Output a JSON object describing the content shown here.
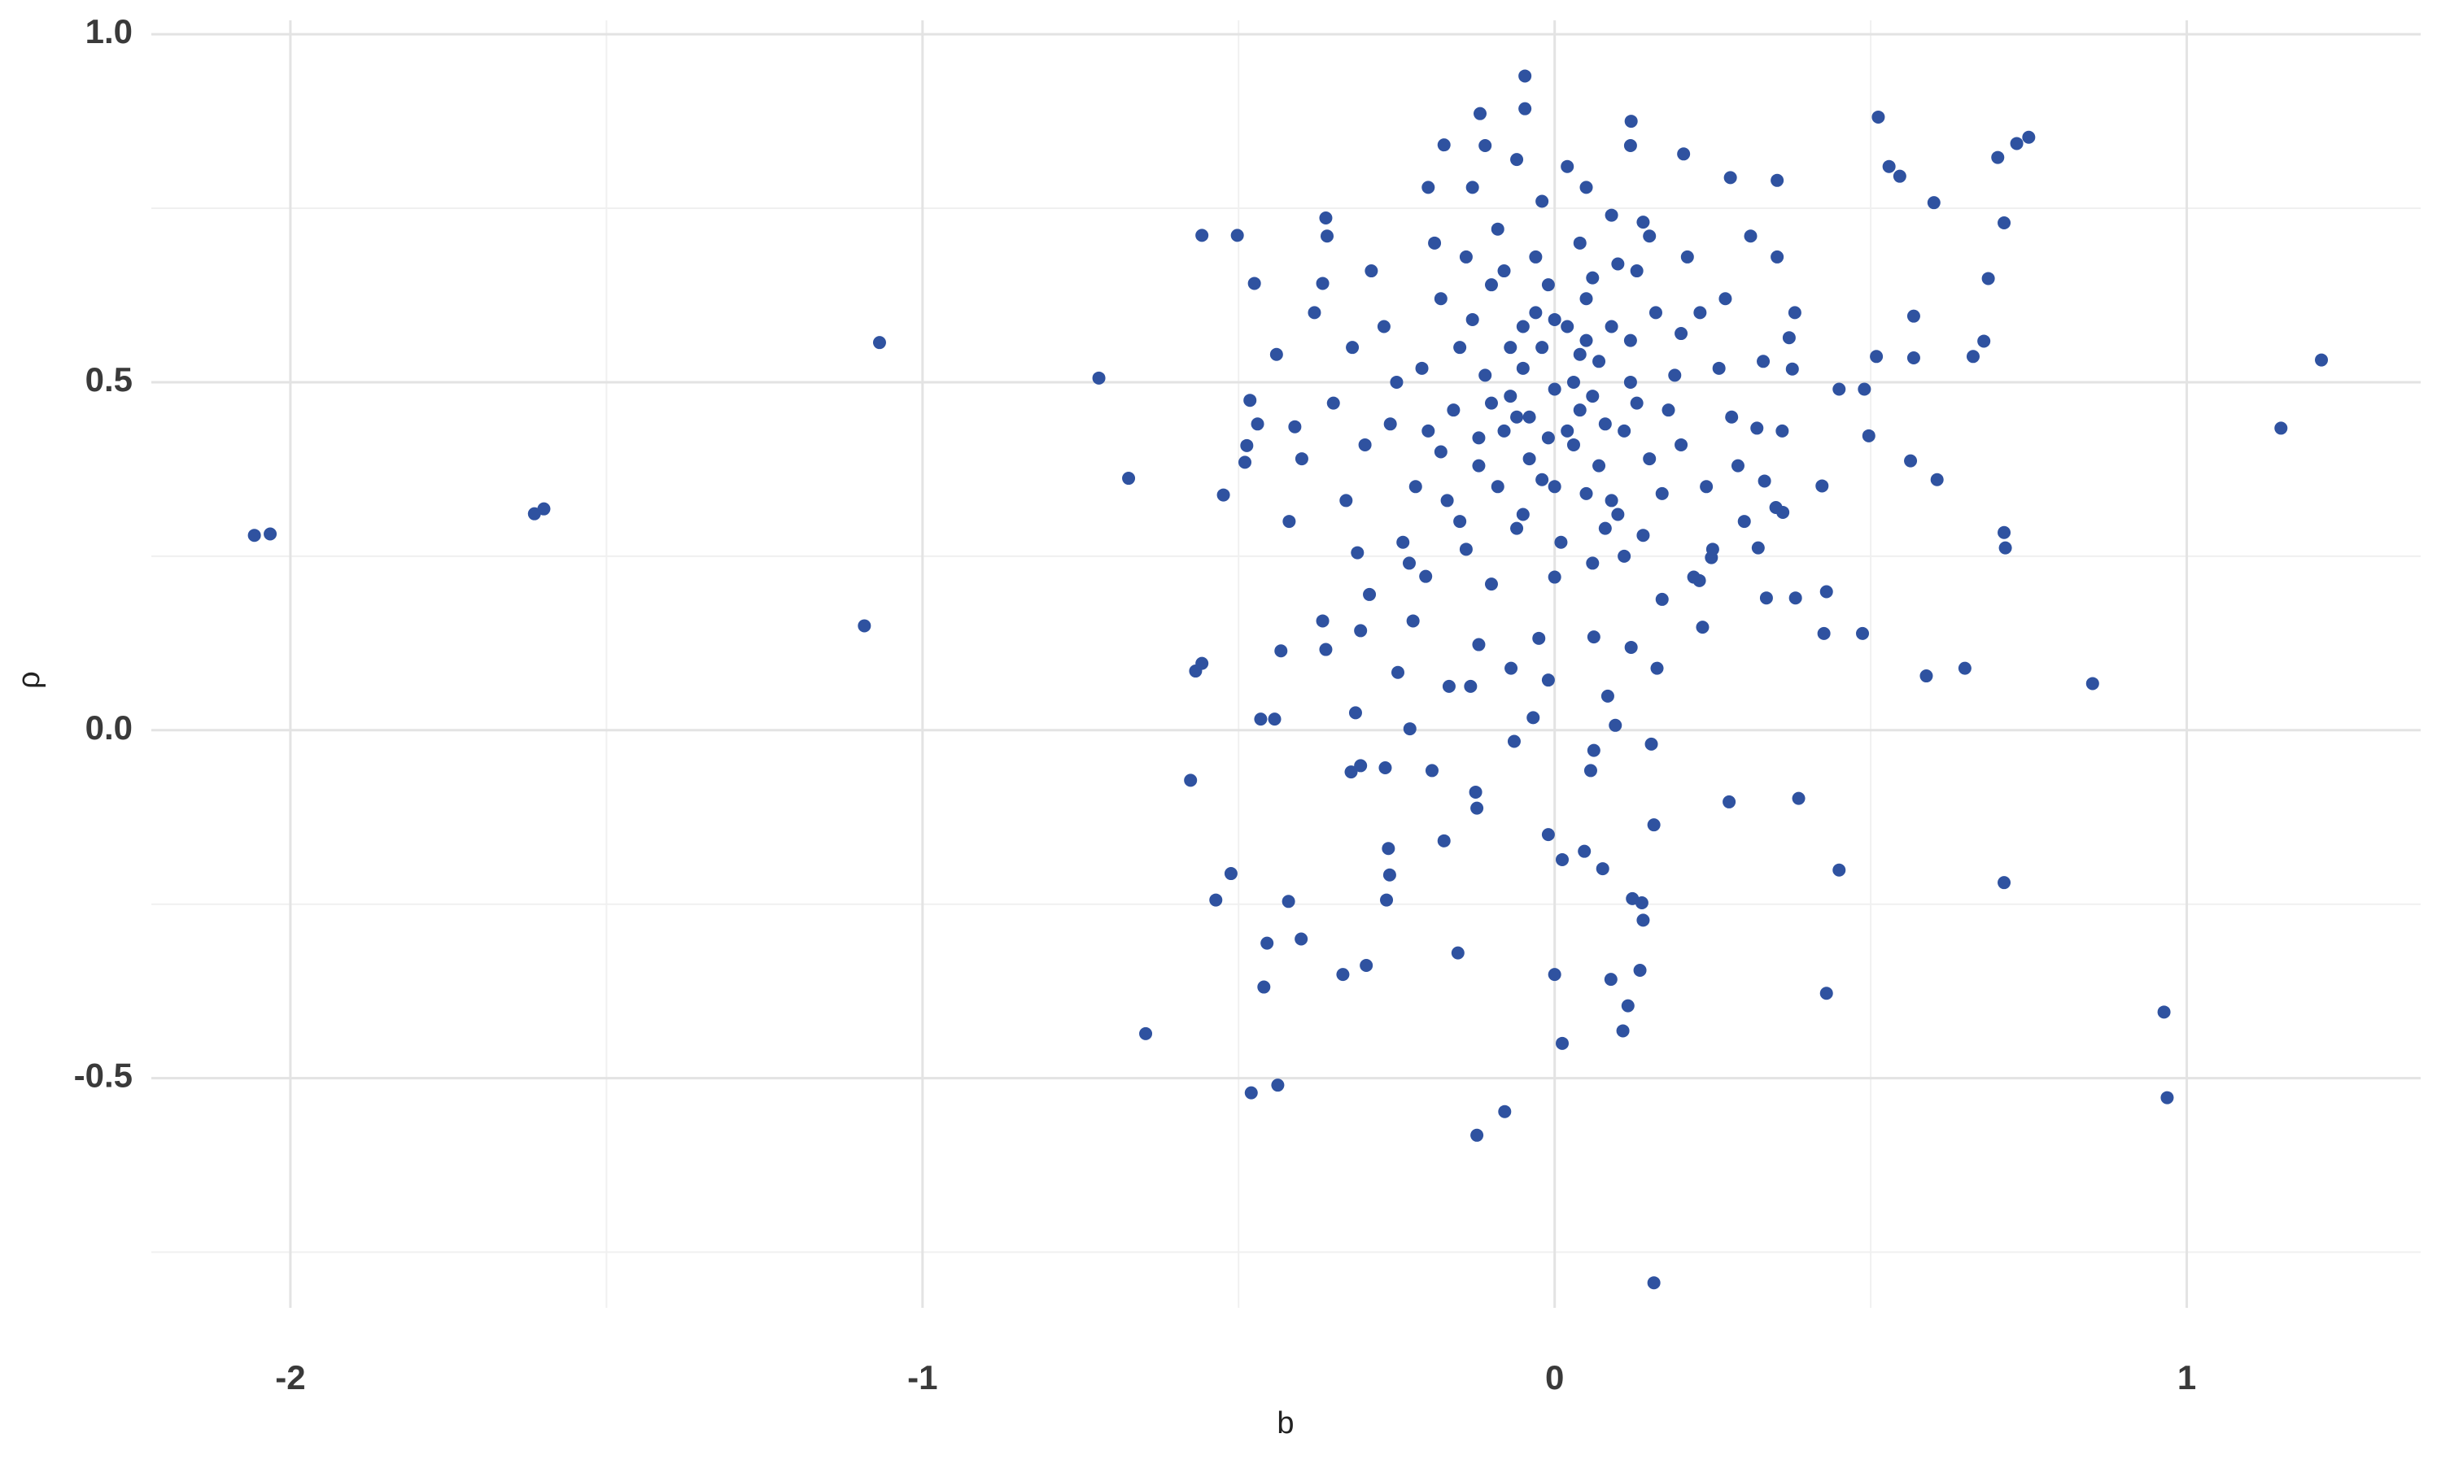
{
  "chart_data": {
    "type": "scatter",
    "x_label": "b",
    "y_label": "ρ",
    "xlim": [
      -2.22,
      1.37
    ],
    "ylim": [
      -0.83,
      1.02
    ],
    "xticks": [
      -2,
      -1,
      0,
      1
    ],
    "yticks": [
      {
        "value": 1,
        "label": "1.0"
      },
      0.5,
      {
        "value": 0,
        "label": "0.0"
      },
      -0.5
    ],
    "grid": true,
    "minor_grid": true,
    "series": [
      {
        "color": "#2f52a0",
        "x": [
          -2.057,
          -2.032,
          -1.614,
          -1.599,
          -1.068,
          -1.092,
          -0.721,
          -0.674,
          -0.647,
          -0.576,
          -0.568,
          -0.558,
          -0.558,
          -0.502,
          -0.475,
          -0.482,
          -0.487,
          -0.49,
          -0.524,
          -0.512,
          -0.536,
          -0.465,
          -0.443,
          -0.455,
          -0.46,
          -0.48,
          -0.438,
          -0.433,
          -0.421,
          -0.401,
          -0.411,
          -0.335,
          -0.298,
          -0.322,
          -0.307,
          -0.268,
          -0.263,
          -0.261,
          -0.266,
          -0.229,
          -0.248,
          -0.194,
          -0.175,
          -0.153,
          -0.123,
          -0.079,
          -0.125,
          -0.123,
          -0.064,
          -0.01,
          0.012,
          0,
          0.012,
          0.047,
          0.057,
          0.062,
          0.076,
          0.089,
          0.108,
          0.116,
          0.123,
          0.138,
          0.14,
          0.135,
          0.157,
          0.157,
          0.153,
          0.096,
          0.084,
          0.276,
          0.386,
          0.45,
          0.43,
          0.487,
          0.426,
          0.43,
          0.381,
          0.335,
          0.234,
          0.248,
          0.851,
          0.588,
          0.649,
          0.711,
          0.964,
          0.969,
          0.711,
          0.713,
          1.149,
          1.213,
          0.605,
          0.563,
          0.497,
          0.423,
          0.45,
          0.49,
          0.509,
          0.568,
          0.568,
          0.662,
          0.679,
          0.686,
          0.711,
          0.701,
          0.731,
          0.75,
          0.512,
          0.529,
          0.546,
          0.6,
          0.352,
          0.278,
          0.204,
          0.352,
          0.371,
          0.376,
          0.32,
          0.332,
          0.361,
          0.322,
          -0.118,
          -0.047,
          -0.047,
          -0.175,
          0.121,
          -0.362,
          -0.367,
          -0.315,
          -0.293,
          -0.224,
          -0.204,
          -0.167,
          -0.133,
          -0.12,
          -0.069,
          -0.01,
          -0.034,
          0.062,
          0.121,
          0.162,
          -0.025,
          0.17,
          0.229,
          -0.362,
          -0.307,
          -0.367,
          -0.312,
          -0.05,
          0.02,
          -0.1,
          0.08,
          -0.02,
          0.05,
          -0.15,
          0.12,
          -0.08,
          0.03,
          -0.2,
          0.15,
          0,
          -0.03,
          0.07,
          -0.12,
          0.1,
          -0.06,
          0.04,
          -0.18,
          0.2,
          -0.25,
          0.18,
          -0.09,
          0.01,
          0.06,
          -0.14,
          0.13,
          -0.22,
          0.24,
          -0.04,
          0.09,
          -0.07,
          0.03,
          -0.11,
          0.11,
          -0.16,
          0.16,
          -0.01,
          0.05,
          -0.3,
          0.28,
          -0.27,
          0.26,
          -0.33,
          0.3,
          -0.02,
          0.09,
          -0.13,
          0.14,
          -0.19,
          0.21,
          -0.35,
          0.33,
          -0.38,
          0.36,
          -0.24,
          0.22,
          -0.1,
          0,
          -0.06,
          0.02,
          -0.17,
          0.17,
          -0.04,
          0.07,
          -0.08,
          0.04,
          -0.13,
          0.12,
          -0.21,
          0.19,
          -0.02,
          0.06,
          -0.29,
          0.27,
          -0.4,
          0.38,
          -0.44,
          0.31,
          -0.36,
          -0.42,
          0.25,
          -0.23,
          0.11,
          -0.05,
          0.08,
          -0.15,
          0.14,
          -0.1,
          0.1,
          0,
          -0.03,
          0.05,
          -0.07,
          0.02,
          -0.12,
          0.13,
          -0.18,
          0.2,
          -0.26,
          0.23,
          -0.32,
          0.29,
          -0.47,
          0.35,
          -0.09,
          0.09,
          -0.01,
          0.04,
          -0.05,
          0.06,
          -0.14,
          0.15,
          -0.2,
          0.05,
          -0.11,
          0.12,
          0,
          -0.06
        ],
        "values": [
          0.28,
          0.282,
          0.311,
          0.318,
          0.557,
          0.15,
          0.506,
          0.362,
          -0.436,
          -0.072,
          0.085,
          0.096,
          0.711,
          0.711,
          0.642,
          0.474,
          0.409,
          0.385,
          0.338,
          -0.206,
          -0.244,
          0.016,
          0.016,
          -0.306,
          -0.369,
          -0.521,
          -0.51,
          0.114,
          -0.246,
          -0.3,
          0.436,
          -0.351,
          -0.338,
          -0.06,
          -0.051,
          -0.054,
          -0.17,
          -0.208,
          -0.244,
          0.002,
          0.083,
          -0.058,
          -0.159,
          -0.32,
          -0.582,
          -0.548,
          -0.089,
          -0.112,
          -0.016,
          -0.15,
          -0.186,
          -0.351,
          -0.45,
          -0.174,
          -0.058,
          -0.029,
          -0.199,
          -0.358,
          -0.432,
          -0.396,
          -0.242,
          -0.248,
          -0.273,
          -0.345,
          -0.136,
          -0.794,
          -0.02,
          0.007,
          0.049,
          -0.103,
          -0.098,
          -0.201,
          -0.378,
          0.139,
          0.139,
          0.199,
          0.19,
          0.19,
          0.148,
          0.248,
          0.067,
          0.078,
          0.089,
          -0.219,
          -0.405,
          -0.528,
          0.284,
          0.262,
          0.434,
          0.532,
          0.36,
          0.387,
          0.423,
          0.351,
          0.49,
          0.49,
          0.537,
          0.595,
          0.535,
          0.537,
          0.559,
          0.649,
          0.729,
          0.823,
          0.843,
          0.852,
          0.881,
          0.81,
          0.796,
          0.758,
          0.79,
          0.794,
          0.828,
          0.68,
          0.564,
          0.519,
          0.434,
          0.358,
          0.313,
          0.262,
          0.886,
          0.893,
          0.94,
          0.841,
          0.875,
          0.736,
          0.642,
          0.025,
          0.195,
          0.157,
          0.221,
          0.063,
          0.063,
          0.123,
          0.089,
          0.072,
          0.018,
          0.134,
          0.119,
          0.089,
          0.132,
          0.188,
          0.215,
          0.116,
          0.143,
          0.157,
          0.255,
          0.52,
          0.58,
          0.47,
          0.44,
          0.36,
          0.62,
          0.55,
          0.5,
          0.66,
          0.41,
          0.43,
          0.39,
          0.49,
          0.6,
          0.53,
          0.38,
          0.31,
          0.29,
          0.7,
          0.62,
          0.57,
          0.5,
          0.46,
          0.72,
          0.27,
          0.24,
          0.26,
          0.66,
          0.35,
          0.35,
          0.45,
          0.58,
          0.55,
          0.5,
          0.51,
          0.43,
          0.46,
          0.6,
          0.64,
          0.34,
          0.41,
          0.45,
          0.58,
          0.52,
          0.33,
          0.3,
          0.76,
          0.74,
          0.78,
          0.73,
          0.7,
          0.68,
          0.47,
          0.53,
          0.6,
          0.43,
          0.27,
          0.22,
          0.21,
          0.22,
          0.82,
          0.81,
          0.33,
          0.34,
          0.39,
          0.38,
          0.43,
          0.46,
          0.59,
          0.56,
          0.52,
          0.51,
          0.55,
          0.48,
          0.66,
          0.62,
          0.39,
          0.6,
          0.54,
          0.71,
          0.71,
          0.3,
          0.26,
          0.24,
          0.25,
          0.31,
          0.29,
          0.3,
          0.28,
          0.64,
          0.67,
          0.59,
          0.68,
          0.56,
          0.48,
          0.43,
          0.42,
          0.47,
          0.4,
          0.41,
          0.44,
          0.6,
          0.55,
          0.38,
          0.44,
          0.32,
          0.35,
          0.33,
          0.42,
          0.54,
          0.58,
          0.65,
          0.68,
          0.71,
          0.78,
          0.78,
          0.84,
          0.84,
          0.35,
          0.45
        ]
      }
    ]
  }
}
